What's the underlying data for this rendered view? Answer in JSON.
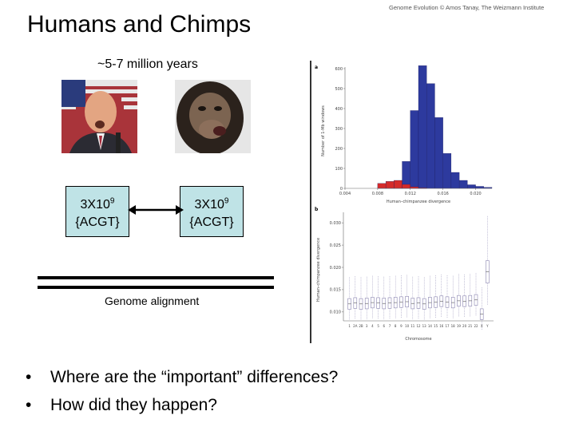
{
  "credit": "Genome Evolution © Amos Tanay, The Weizmann Institute",
  "title": "Humans and Chimps",
  "divergence_time": "~5-7 million years",
  "genome": {
    "size_base": "3X10",
    "size_exp": "9",
    "alphabet": "{ACGT}"
  },
  "alignment_label": "Genome alignment",
  "bullets": [
    "Where are the “important” differences?",
    "How did they happen?"
  ],
  "figure": {
    "panel_a": {
      "label": "a",
      "ylabel": "Number of 1-Mb windows",
      "xlabel": "Human–chimpanzee divergence",
      "yticks": [
        "0",
        "100",
        "200",
        "300",
        "400",
        "500",
        "600"
      ],
      "xticks": [
        "0.004",
        "0.008",
        "0.012",
        "0.016",
        "0.020"
      ]
    },
    "panel_b": {
      "label": "b",
      "ylabel": "Human–chimpanzee divergence",
      "xlabel": "Chromosome",
      "yticks": [
        "0.010",
        "0.015",
        "0.020",
        "0.025",
        "0.030"
      ],
      "chromosomes": [
        "1",
        "2A",
        "2B",
        "3",
        "4",
        "5",
        "6",
        "7",
        "8",
        "9",
        "10",
        "11",
        "12",
        "13",
        "14",
        "15",
        "16",
        "17",
        "18",
        "19",
        "20",
        "21",
        "22",
        "X",
        "Y"
      ]
    }
  },
  "chart_data": [
    {
      "type": "bar",
      "xlabel": "Human–chimpanzee divergence",
      "ylabel": "Number of 1-Mb windows",
      "xlim": [
        0.004,
        0.022
      ],
      "ylim": [
        0,
        600
      ],
      "bin_start": 0.008,
      "bin_width": 0.001,
      "series": [
        {
          "color": "#2d3a9e",
          "values": [
            2,
            8,
            30,
            135,
            390,
            615,
            525,
            355,
            175,
            80,
            40,
            18,
            10,
            5
          ]
        },
        {
          "color": "#d42a2a",
          "values": [
            25,
            35,
            40,
            20,
            8,
            3,
            0,
            0,
            0,
            0,
            0,
            0,
            0,
            0
          ]
        }
      ]
    },
    {
      "type": "box",
      "xlabel": "Chromosome",
      "ylabel": "Human–chimpanzee divergence",
      "ylim": [
        0.008,
        0.032
      ],
      "categories": [
        "1",
        "2A",
        "2B",
        "3",
        "4",
        "5",
        "6",
        "7",
        "8",
        "9",
        "10",
        "11",
        "12",
        "13",
        "14",
        "15",
        "16",
        "17",
        "18",
        "19",
        "20",
        "21",
        "22",
        "X",
        "Y"
      ],
      "medians": [
        0.0118,
        0.012,
        0.0118,
        0.0119,
        0.0121,
        0.012,
        0.0119,
        0.012,
        0.0121,
        0.0122,
        0.0123,
        0.0119,
        0.012,
        0.0118,
        0.0121,
        0.0122,
        0.0124,
        0.0122,
        0.0121,
        0.0125,
        0.0124,
        0.0125,
        0.0127,
        0.0095,
        0.019
      ]
    }
  ]
}
